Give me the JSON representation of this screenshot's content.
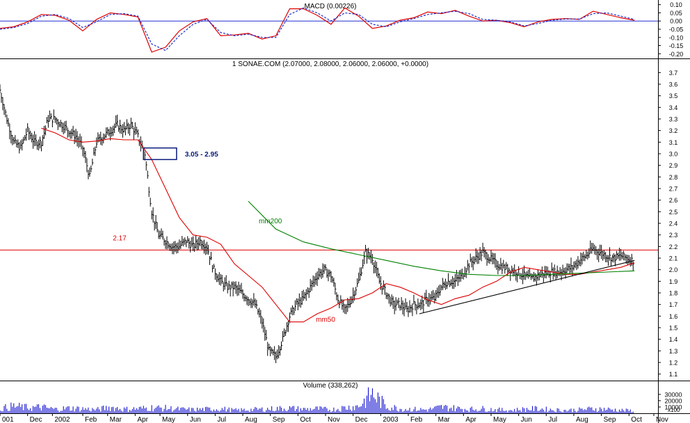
{
  "chart_data": [
    {
      "type": "line",
      "panel": "macd",
      "title": "MACD (0.00226)",
      "ylim": [
        -0.22,
        0.12
      ],
      "y_ticks": [
        "0.10",
        "0.05",
        "0.00",
        "-0.05",
        "-0.10",
        "-0.15",
        "-0.20"
      ],
      "zero_line": 0,
      "series": [
        {
          "style": "solid",
          "color": "#dd0000",
          "x": [
            0.0,
            0.5,
            1.0,
            1.5,
            2.0,
            2.5,
            3.0,
            3.5,
            4.0,
            4.5,
            5.0,
            5.5,
            6.0,
            6.5,
            7.0,
            7.5,
            8.0,
            8.5,
            9.0,
            9.5,
            10.0,
            10.5,
            11.0,
            11.5,
            12.0,
            12.5,
            13.0,
            13.5,
            14.0,
            14.5,
            15.0,
            15.5,
            16.0,
            16.5,
            17.0,
            17.5,
            18.0,
            18.5,
            19.0,
            19.5,
            20.0,
            20.5,
            21.0,
            21.5,
            22.0,
            22.5,
            23.0
          ],
          "values": [
            -0.045,
            -0.035,
            -0.005,
            0.04,
            0.035,
            0.005,
            -0.06,
            0.01,
            0.05,
            0.04,
            0.025,
            -0.19,
            -0.16,
            -0.06,
            -0.005,
            0.015,
            -0.09,
            -0.085,
            -0.075,
            -0.11,
            -0.09,
            0.075,
            0.075,
            0.035,
            -0.02,
            0.08,
            0.03,
            -0.045,
            -0.03,
            0.005,
            0.02,
            0.055,
            0.045,
            0.065,
            0.03,
            0.0,
            0.005,
            -0.01,
            -0.035,
            -0.005,
            0.01,
            0.015,
            0.01,
            0.06,
            0.04,
            0.02,
            0.005
          ]
        },
        {
          "style": "dashed",
          "color": "#1a2bcc",
          "x": [
            0.0,
            0.5,
            1.0,
            1.5,
            2.0,
            2.5,
            3.0,
            3.5,
            4.0,
            4.5,
            5.0,
            5.5,
            6.0,
            6.5,
            7.0,
            7.5,
            8.0,
            8.5,
            9.0,
            9.5,
            10.0,
            10.5,
            11.0,
            11.5,
            12.0,
            12.5,
            13.0,
            13.5,
            14.0,
            14.5,
            15.0,
            15.5,
            16.0,
            16.5,
            17.0,
            17.5,
            18.0,
            18.5,
            19.0,
            19.5,
            20.0,
            20.5,
            21.0,
            21.5,
            22.0,
            22.5,
            23.0
          ],
          "values": [
            -0.05,
            -0.04,
            -0.015,
            0.03,
            0.04,
            0.015,
            -0.04,
            -0.005,
            0.04,
            0.045,
            0.03,
            -0.14,
            -0.18,
            -0.09,
            -0.02,
            0.01,
            -0.07,
            -0.09,
            -0.08,
            -0.1,
            -0.1,
            0.04,
            0.08,
            0.05,
            0.0,
            0.05,
            0.04,
            -0.02,
            -0.035,
            -0.005,
            0.015,
            0.04,
            0.05,
            0.06,
            0.045,
            0.01,
            0.005,
            -0.005,
            -0.03,
            -0.015,
            0.005,
            0.012,
            0.012,
            0.045,
            0.05,
            0.03,
            0.01
          ]
        }
      ]
    },
    {
      "type": "line",
      "panel": "price",
      "title": "1 SONAE.COM (2.07000, 2.08000, 2.06000, 2.06000, +0.0000)",
      "ylim": [
        1.05,
        3.75
      ],
      "y_ticks": [
        "3.7",
        "3.6",
        "3.5",
        "3.4",
        "3.3",
        "3.2",
        "3.1",
        "3.0",
        "2.9",
        "2.8",
        "2.7",
        "2.6",
        "2.5",
        "2.4",
        "2.3",
        "2.2",
        "2.1",
        "2.0",
        "1.9",
        "1.8",
        "1.7",
        "1.6",
        "1.5",
        "1.4",
        "1.3",
        "1.2",
        "1.1"
      ],
      "x_ticks": [
        "001",
        "Dec",
        "2002",
        "Feb",
        "Mar",
        "Apr",
        "May",
        "Jun",
        "Jul",
        "Aug",
        "Sep",
        "Oct",
        "Nov",
        "Dec",
        "2003",
        "Feb",
        "Mar",
        "Apr",
        "May",
        "Jun",
        "Jul",
        "Aug",
        "Sep",
        "Oct",
        "Nov"
      ],
      "x_tick_pos": [
        0.0,
        1.0,
        1.9,
        3.0,
        3.9,
        4.9,
        5.8,
        6.8,
        7.8,
        8.8,
        9.8,
        10.8,
        11.8,
        12.8,
        13.8,
        14.8,
        15.8,
        16.8,
        17.8,
        18.8,
        19.8,
        20.8,
        21.8,
        22.8,
        23.7
      ],
      "series": [
        {
          "name": "price",
          "style": "bars",
          "color": "#000000",
          "x": [
            0.0,
            0.25,
            0.5,
            0.75,
            1.0,
            1.25,
            1.5,
            1.75,
            2.0,
            2.25,
            2.5,
            2.75,
            3.0,
            3.25,
            3.5,
            3.75,
            4.0,
            4.25,
            4.5,
            4.75,
            5.0,
            5.25,
            5.5,
            5.75,
            6.0,
            6.25,
            6.5,
            6.75,
            7.0,
            7.25,
            7.5,
            7.75,
            8.0,
            8.25,
            8.5,
            8.75,
            9.0,
            9.25,
            9.5,
            9.75,
            10.0,
            10.25,
            10.5,
            10.75,
            11.0,
            11.25,
            11.5,
            11.75,
            12.0,
            12.25,
            12.5,
            12.75,
            13.0,
            13.25,
            13.5,
            13.75,
            14.0,
            14.25,
            14.5,
            14.75,
            15.0,
            15.25,
            15.5,
            15.75,
            16.0,
            16.25,
            16.5,
            16.75,
            17.0,
            17.25,
            17.5,
            17.75,
            18.0,
            18.25,
            18.5,
            18.75,
            19.0,
            19.25,
            19.5,
            19.75,
            20.0,
            20.25,
            20.5,
            20.75,
            21.0,
            21.25,
            21.5,
            21.75,
            22.0,
            22.25,
            22.5,
            22.75,
            23.0
          ],
          "values": [
            3.55,
            3.3,
            3.1,
            3.05,
            3.2,
            3.1,
            3.1,
            3.3,
            3.3,
            3.25,
            3.2,
            3.15,
            3.05,
            2.8,
            3.1,
            3.15,
            3.2,
            3.25,
            3.2,
            3.25,
            3.15,
            3.0,
            2.5,
            2.3,
            2.25,
            2.2,
            2.2,
            2.25,
            2.2,
            2.25,
            2.2,
            2.0,
            1.9,
            1.85,
            1.85,
            1.8,
            1.75,
            1.7,
            1.55,
            1.3,
            1.25,
            1.4,
            1.6,
            1.7,
            1.75,
            1.85,
            1.95,
            2.0,
            1.95,
            1.75,
            1.65,
            1.75,
            1.9,
            2.15,
            2.1,
            1.9,
            1.8,
            1.7,
            1.7,
            1.65,
            1.7,
            1.7,
            1.75,
            1.75,
            1.85,
            1.9,
            1.9,
            1.95,
            2.05,
            2.1,
            2.15,
            2.1,
            2.05,
            2.02,
            2.0,
            1.98,
            1.95,
            1.92,
            1.95,
            1.97,
            1.98,
            1.98,
            2.0,
            2.02,
            2.08,
            2.12,
            2.18,
            2.15,
            2.12,
            2.1,
            2.12,
            2.1,
            2.07
          ]
        },
        {
          "name": "mm50",
          "style": "solid",
          "color": "#dd0000",
          "x": [
            1.5,
            2.0,
            2.5,
            3.0,
            3.5,
            4.0,
            4.5,
            5.0,
            5.5,
            6.0,
            6.5,
            7.0,
            7.5,
            8.0,
            8.5,
            9.0,
            9.5,
            10.0,
            10.5,
            11.0,
            11.5,
            12.0,
            12.5,
            13.0,
            13.5,
            14.0,
            14.5,
            15.0,
            15.5,
            16.0,
            16.5,
            17.0,
            17.5,
            18.0,
            18.5,
            19.0,
            19.5,
            20.0,
            20.5,
            21.0,
            21.5,
            22.0,
            22.5,
            23.0
          ],
          "values": [
            3.22,
            3.18,
            3.12,
            3.1,
            3.11,
            3.13,
            3.12,
            3.12,
            2.95,
            2.7,
            2.45,
            2.3,
            2.28,
            2.22,
            2.05,
            1.95,
            1.85,
            1.7,
            1.55,
            1.55,
            1.62,
            1.67,
            1.74,
            1.75,
            1.8,
            1.88,
            1.85,
            1.8,
            1.74,
            1.7,
            1.75,
            1.78,
            1.85,
            1.9,
            1.98,
            2.02,
            2.0,
            1.98,
            1.96,
            1.96,
            1.98,
            2.0,
            2.02,
            2.06
          ]
        },
        {
          "name": "mm200",
          "style": "solid",
          "color": "#008000",
          "x": [
            9.0,
            10.0,
            11.0,
            12.0,
            13.0,
            14.0,
            15.0,
            16.0,
            17.0,
            18.0,
            19.0,
            20.0,
            21.0,
            22.0,
            23.0
          ],
          "values": [
            2.59,
            2.35,
            2.24,
            2.18,
            2.13,
            2.08,
            2.03,
            1.99,
            1.96,
            1.95,
            1.95,
            1.96,
            1.97,
            1.98,
            1.99
          ]
        },
        {
          "name": "trend",
          "style": "solid",
          "color": "#000000",
          "x": [
            15.2,
            23.0
          ],
          "values": [
            1.62,
            2.08
          ]
        }
      ],
      "hline": {
        "value": 2.17,
        "label": "2.17",
        "color": "#dd0000"
      },
      "annotations": [
        {
          "label": "3.05 - 2.95",
          "type": "box",
          "x0": 5.2,
          "x1": 6.4,
          "y0": 2.95,
          "y1": 3.05,
          "color": "#0a1a7a"
        },
        {
          "label": "mm200",
          "x": 9.8,
          "y": 2.4,
          "color": "#008000"
        },
        {
          "label": "mm50",
          "x": 11.8,
          "y": 1.55,
          "color": "#dd0000"
        }
      ]
    },
    {
      "type": "bar",
      "panel": "volume",
      "title": "Volume (338,262)",
      "y_ticks": [
        "30000",
        "20000",
        "10000"
      ],
      "y_unit_label": "x100",
      "ylim": [
        0,
        42000
      ],
      "color": "#0000cc",
      "x": [
        0.0,
        0.5,
        1.0,
        1.5,
        2.0,
        2.5,
        3.0,
        3.5,
        4.0,
        4.5,
        5.0,
        5.5,
        6.0,
        6.5,
        7.0,
        7.5,
        8.0,
        8.5,
        9.0,
        9.5,
        10.0,
        10.5,
        11.0,
        11.5,
        12.0,
        12.5,
        13.0,
        13.5,
        14.0,
        14.5,
        15.0,
        15.5,
        16.0,
        16.5,
        17.0,
        17.5,
        18.0,
        18.5,
        19.0,
        19.5,
        20.0,
        20.5,
        21.0,
        21.5,
        22.0,
        22.5,
        23.0
      ],
      "values": [
        9000,
        14000,
        11000,
        12000,
        8000,
        10000,
        9000,
        7000,
        12000,
        8000,
        9000,
        11000,
        10000,
        8000,
        7000,
        8000,
        9000,
        6000,
        7000,
        8000,
        9000,
        10000,
        8000,
        9000,
        7000,
        11000,
        14000,
        38000,
        14000,
        9000,
        8000,
        7000,
        12000,
        10000,
        8000,
        9000,
        7000,
        6000,
        8000,
        9000,
        7000,
        6000,
        7000,
        9000,
        8000,
        6000,
        5000
      ]
    }
  ]
}
